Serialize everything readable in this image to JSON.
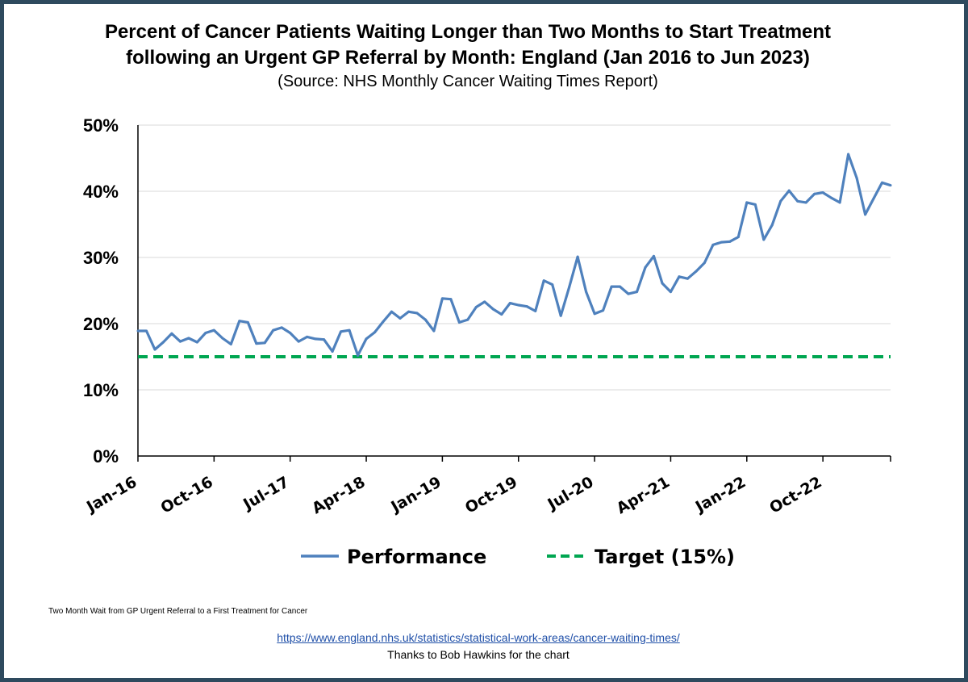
{
  "chart_data": {
    "type": "line",
    "title": "Percent of Cancer Patients Waiting Longer than Two Months to Start Treatment",
    "title_line2": "following an Urgent GP Referral by Month: England (Jan 2016 to Jun 2023)",
    "subtitle": "(Source: NHS Monthly Cancer Waiting Times Report)",
    "xlabel": "",
    "ylabel": "",
    "ylim": [
      0,
      50
    ],
    "y_ticks": [
      "0%",
      "10%",
      "20%",
      "30%",
      "40%",
      "50%"
    ],
    "x_tick_labels": [
      "Jan-16",
      "Oct-16",
      "Jul-17",
      "Apr-18",
      "Jan-19",
      "Oct-19",
      "Jul-20",
      "Apr-21",
      "Jan-22",
      "Oct-22"
    ],
    "x_start": "Jan-16",
    "x_end": "Jun-23",
    "grid": true,
    "legend_position": "bottom",
    "series": [
      {
        "name": "Performance",
        "color": "#4f81bd",
        "style": "solid",
        "values": [
          18.9,
          18.9,
          16.1,
          17.2,
          18.5,
          17.3,
          17.8,
          17.2,
          18.6,
          19.0,
          17.8,
          16.9,
          20.4,
          20.2,
          17.0,
          17.1,
          19.0,
          19.4,
          18.6,
          17.3,
          18.0,
          17.7,
          17.6,
          15.8,
          18.8,
          19.0,
          15.2,
          17.7,
          18.7,
          20.3,
          21.8,
          20.8,
          21.8,
          21.6,
          20.6,
          18.9,
          23.8,
          23.7,
          20.2,
          20.6,
          22.5,
          23.3,
          22.2,
          21.4,
          23.1,
          22.8,
          22.6,
          21.9,
          26.5,
          25.9,
          21.2,
          25.5,
          30.1,
          24.8,
          21.5,
          22.0,
          25.6,
          25.6,
          24.5,
          24.8,
          28.5,
          30.2,
          26.1,
          24.8,
          27.1,
          26.8,
          27.9,
          29.2,
          31.9,
          32.3,
          32.4,
          33.1,
          38.3,
          38.0,
          32.7,
          34.9,
          38.5,
          40.1,
          38.5,
          38.3,
          39.6,
          39.8,
          39.0,
          38.3,
          45.6,
          42.0,
          36.5,
          38.9,
          41.3,
          40.9
        ]
      },
      {
        "name": "Target (15%)",
        "color": "#00a651",
        "style": "dashed",
        "values": [
          15
        ]
      }
    ]
  },
  "footnote": "Two Month Wait from GP Urgent Referral to a First Treatment for Cancer",
  "source_link": "https://www.england.nhs.uk/statistics/statistical-work-areas/cancer-waiting-times/",
  "credit": "Thanks to Bob Hawkins for the chart"
}
